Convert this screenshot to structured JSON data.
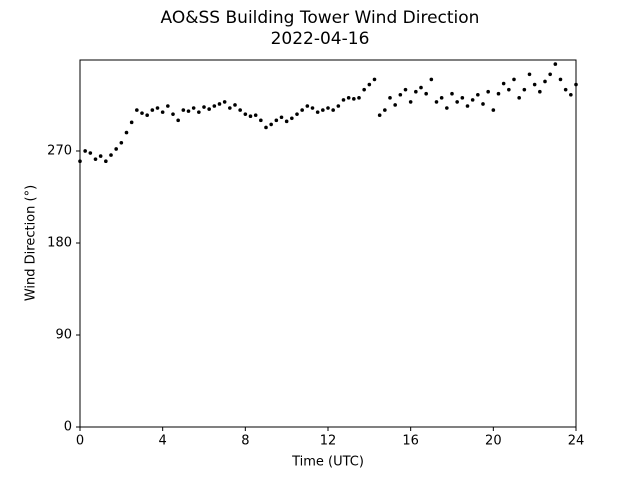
{
  "chart_data": {
    "type": "scatter",
    "title": "AO&SS Building Tower Wind Direction",
    "subtitle": "2022-04-16",
    "x_label": "Time (UTC)",
    "y_label": "Wind Direction (°)",
    "color": "#000000",
    "xlim": [
      0,
      24
    ],
    "xticks": [
      0,
      4,
      8,
      12,
      16,
      20,
      24
    ],
    "ylim": [
      0,
      359
    ],
    "yticks": [
      0,
      90,
      180,
      270
    ],
    "x": [
      0,
      0.25,
      0.5,
      0.75,
      1,
      1.25,
      1.5,
      1.75,
      2,
      2.25,
      2.5,
      2.75,
      3,
      3.25,
      3.5,
      3.75,
      4,
      4.25,
      4.5,
      4.75,
      5,
      5.25,
      5.5,
      5.75,
      6,
      6.25,
      6.5,
      6.75,
      7,
      7.25,
      7.5,
      7.75,
      8,
      8.25,
      8.5,
      8.75,
      9,
      9.25,
      9.5,
      9.75,
      10,
      10.25,
      10.5,
      10.75,
      11,
      11.25,
      11.5,
      11.75,
      12,
      12.25,
      12.5,
      12.75,
      13,
      13.25,
      13.5,
      13.75,
      14,
      14.25,
      14.5,
      14.75,
      15,
      15.25,
      15.5,
      15.75,
      16,
      16.25,
      16.5,
      16.75,
      17,
      17.25,
      17.5,
      17.75,
      18,
      18.25,
      18.5,
      18.75,
      19,
      19.25,
      19.5,
      19.75,
      20,
      20.25,
      20.5,
      20.75,
      21,
      21.25,
      21.5,
      21.75,
      22,
      22.25,
      22.5,
      22.75,
      23,
      23.25,
      23.5,
      23.75,
      24
    ],
    "values": [
      260,
      270,
      268,
      262,
      265,
      260,
      266,
      272,
      278,
      288,
      298,
      310,
      307,
      305,
      310,
      312,
      308,
      314,
      306,
      300,
      310,
      309,
      312,
      308,
      313,
      311,
      314,
      316,
      318,
      312,
      315,
      310,
      306,
      304,
      305,
      300,
      293,
      296,
      300,
      303,
      299,
      302,
      306,
      310,
      314,
      312,
      308,
      310,
      312,
      310,
      314,
      320,
      322,
      321,
      322,
      330,
      335,
      340,
      305,
      310,
      322,
      315,
      325,
      330,
      318,
      328,
      332,
      326,
      340,
      318,
      322,
      312,
      326,
      318,
      322,
      314,
      320,
      325,
      316,
      328,
      310,
      326,
      336,
      330,
      340,
      322,
      330,
      345,
      335,
      328,
      338,
      345,
      355,
      340,
      330,
      325,
      335
    ]
  }
}
